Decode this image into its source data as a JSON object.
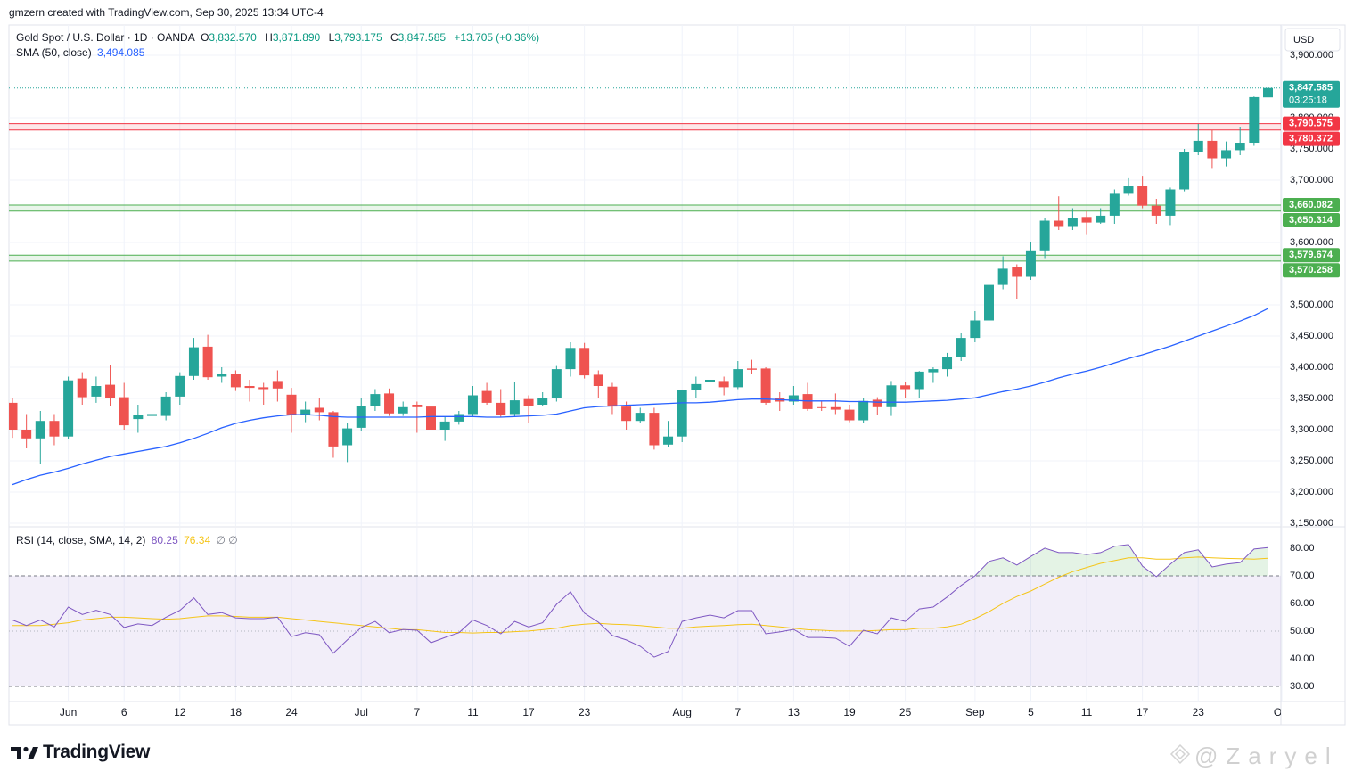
{
  "header": "gmzern created with TradingView.com, Sep 30, 2025 13:34 UTC-4",
  "logo": "TradingView",
  "watermark": "@Zaryel",
  "chart_data": {
    "type": "candlestick",
    "currency": "USD",
    "up_color": "#26a69a",
    "down_color": "#ef5350",
    "grid": true,
    "legend": {
      "symbol": "Gold Spot / U.S. Dollar · 1D · OANDA",
      "ohlc": [
        {
          "key": "O",
          "value": 3832.57,
          "label": "3,832.570"
        },
        {
          "key": "H",
          "value": 3871.89,
          "label": "3,871.890"
        },
        {
          "key": "L",
          "value": 3793.175,
          "label": "3,793.175"
        },
        {
          "key": "C",
          "value": 3847.585,
          "label": "3,847.585"
        }
      ],
      "change": {
        "value": 13.705,
        "label": "+13.705"
      },
      "change_pct": {
        "value": 0.36,
        "label": "(+0.36%)"
      }
    },
    "x": [
      "2025-05-27",
      "2025-05-28",
      "2025-05-29",
      "2025-05-30",
      "2025-06-02",
      "2025-06-03",
      "2025-06-04",
      "2025-06-05",
      "2025-06-06",
      "2025-06-09",
      "2025-06-10",
      "2025-06-11",
      "2025-06-12",
      "2025-06-13",
      "2025-06-16",
      "2025-06-17",
      "2025-06-18",
      "2025-06-19",
      "2025-06-20",
      "2025-06-23",
      "2025-06-24",
      "2025-06-25",
      "2025-06-26",
      "2025-06-27",
      "2025-06-30",
      "2025-07-01",
      "2025-07-02",
      "2025-07-03",
      "2025-07-04",
      "2025-07-07",
      "2025-07-08",
      "2025-07-09",
      "2025-07-10",
      "2025-07-11",
      "2025-07-14",
      "2025-07-15",
      "2025-07-16",
      "2025-07-17",
      "2025-07-18",
      "2025-07-21",
      "2025-07-22",
      "2025-07-23",
      "2025-07-24",
      "2025-07-25",
      "2025-07-28",
      "2025-07-29",
      "2025-07-30",
      "2025-07-31",
      "2025-08-01",
      "2025-08-04",
      "2025-08-05",
      "2025-08-06",
      "2025-08-07",
      "2025-08-08",
      "2025-08-11",
      "2025-08-12",
      "2025-08-13",
      "2025-08-14",
      "2025-08-15",
      "2025-08-18",
      "2025-08-19",
      "2025-08-20",
      "2025-08-21",
      "2025-08-22",
      "2025-08-25",
      "2025-08-26",
      "2025-08-27",
      "2025-08-28",
      "2025-08-29",
      "2025-09-01",
      "2025-09-02",
      "2025-09-03",
      "2025-09-04",
      "2025-09-05",
      "2025-09-08",
      "2025-09-09",
      "2025-09-10",
      "2025-09-11",
      "2025-09-12",
      "2025-09-15",
      "2025-09-16",
      "2025-09-17",
      "2025-09-18",
      "2025-09-19",
      "2025-09-22",
      "2025-09-23",
      "2025-09-24",
      "2025-09-25",
      "2025-09-26",
      "2025-09-29",
      "2025-09-30"
    ],
    "open": [
      3343,
      3300,
      3286,
      3314,
      3289,
      3382,
      3353,
      3372,
      3352,
      3317,
      3322,
      3322,
      3353,
      3386,
      3433,
      3385,
      3390,
      3370,
      3368,
      3378,
      3356,
      3323,
      3335,
      3328,
      3275,
      3303,
      3338,
      3358,
      3326,
      3340,
      3337,
      3300,
      3313,
      3325,
      3362,
      3343,
      3325,
      3349,
      3340,
      3350,
      3397,
      3431,
      3388,
      3369,
      3337,
      3314,
      3327,
      3276,
      3289,
      3363,
      3376,
      3378,
      3368,
      3398,
      3398,
      3350,
      3345,
      3357,
      3336,
      3336,
      3332,
      3315,
      3348,
      3336,
      3371,
      3365,
      3392,
      3397,
      3417,
      3447,
      3475,
      3532,
      3560,
      3545,
      3586,
      3635,
      3625,
      3641,
      3632,
      3643,
      3678,
      3690,
      3659,
      3643,
      3685,
      3745,
      3763,
      3735,
      3748,
      3760,
      3832.57
    ],
    "high": [
      3350,
      3325,
      3330,
      3325,
      3385,
      3392,
      3385,
      3403,
      3375,
      3340,
      3340,
      3360,
      3392,
      3447,
      3452,
      3400,
      3395,
      3380,
      3375,
      3395,
      3367,
      3345,
      3350,
      3330,
      3310,
      3350,
      3365,
      3366,
      3345,
      3345,
      3345,
      3320,
      3330,
      3370,
      3375,
      3365,
      3377,
      3355,
      3360,
      3402,
      3440,
      3439,
      3395,
      3375,
      3345,
      3335,
      3335,
      3314,
      3363,
      3385,
      3392,
      3385,
      3410,
      3412,
      3400,
      3360,
      3370,
      3375,
      3345,
      3358,
      3340,
      3350,
      3352,
      3378,
      3376,
      3394,
      3400,
      3423,
      3455,
      3490,
      3540,
      3578,
      3565,
      3600,
      3640,
      3674,
      3655,
      3650,
      3655,
      3685,
      3703,
      3707,
      3670,
      3688,
      3750,
      3790,
      3780,
      3762,
      3785,
      3834,
      3871.89
    ],
    "low": [
      3287,
      3270,
      3245,
      3275,
      3285,
      3340,
      3343,
      3338,
      3300,
      3295,
      3310,
      3315,
      3340,
      3380,
      3380,
      3375,
      3362,
      3345,
      3340,
      3345,
      3295,
      3312,
      3315,
      3255,
      3248,
      3298,
      3330,
      3322,
      3322,
      3295,
      3283,
      3282,
      3308,
      3320,
      3340,
      3320,
      3320,
      3310,
      3338,
      3345,
      3385,
      3382,
      3350,
      3325,
      3300,
      3310,
      3268,
      3272,
      3280,
      3350,
      3364,
      3355,
      3365,
      3390,
      3340,
      3330,
      3340,
      3330,
      3330,
      3325,
      3312,
      3311,
      3323,
      3322,
      3350,
      3350,
      3375,
      3385,
      3410,
      3440,
      3470,
      3525,
      3510,
      3540,
      3575,
      3620,
      3620,
      3612,
      3630,
      3630,
      3675,
      3655,
      3630,
      3628,
      3682,
      3740,
      3718,
      3722,
      3740,
      3755,
      3793.175
    ],
    "close": [
      3300,
      3286,
      3314,
      3289,
      3379,
      3352,
      3370,
      3351,
      3307,
      3324,
      3325,
      3353,
      3386,
      3432,
      3384,
      3389,
      3368,
      3367,
      3365,
      3366,
      3323,
      3332,
      3328,
      3273,
      3302,
      3338,
      3357,
      3326,
      3336,
      3336,
      3300,
      3313,
      3325,
      3355,
      3343,
      3323,
      3347,
      3338,
      3350,
      3397,
      3431,
      3387,
      3370,
      3337,
      3314,
      3327,
      3275,
      3289,
      3363,
      3373,
      3380,
      3368,
      3397,
      3396,
      3343,
      3345,
      3355,
      3333,
      3335,
      3332,
      3315,
      3346,
      3336,
      3371,
      3365,
      3393,
      3397,
      3417,
      3447,
      3475,
      3532,
      3558,
      3545,
      3586,
      3635,
      3625,
      3640,
      3632,
      3643,
      3678,
      3690,
      3659,
      3643,
      3685,
      3745,
      3763,
      3735,
      3748,
      3760,
      3833,
      3847.585
    ],
    "sma": {
      "name": "SMA (50, close)",
      "color": "#2962ff",
      "value_label": "3,494.085",
      "values": [
        3212,
        3220,
        3227,
        3232,
        3238,
        3245,
        3251,
        3257,
        3261,
        3265,
        3269,
        3273,
        3279,
        3286,
        3294,
        3303,
        3310,
        3315,
        3319,
        3322,
        3324,
        3324,
        3323,
        3321,
        3320,
        3320,
        3320,
        3320,
        3320,
        3320,
        3321,
        3321,
        3321,
        3321,
        3320,
        3320,
        3321,
        3322,
        3323,
        3325,
        3330,
        3335,
        3337,
        3338,
        3339,
        3340,
        3341,
        3342,
        3343,
        3343,
        3344,
        3346,
        3348,
        3349,
        3349,
        3348,
        3347,
        3346,
        3346,
        3346,
        3345,
        3345,
        3344,
        3344,
        3344,
        3345,
        3346,
        3347,
        3349,
        3351,
        3356,
        3361,
        3365,
        3370,
        3376,
        3383,
        3389,
        3394,
        3400,
        3407,
        3414,
        3420,
        3427,
        3434,
        3442,
        3450,
        3458,
        3466,
        3474,
        3483,
        3494.085
      ]
    },
    "ylim": [
      3145.7,
      3948.6
    ],
    "yticks": [
      {
        "value": 3900,
        "label": "3,900.000"
      },
      {
        "value": 3800,
        "label": "3,800.000"
      },
      {
        "value": 3750,
        "label": "3,750.000"
      },
      {
        "value": 3700,
        "label": "3,700.000"
      },
      {
        "value": 3600,
        "label": "3,600.000"
      },
      {
        "value": 3500,
        "label": "3,500.000"
      },
      {
        "value": 3450,
        "label": "3,450.000"
      },
      {
        "value": 3400,
        "label": "3,400.000"
      },
      {
        "value": 3350,
        "label": "3,350.000"
      },
      {
        "value": 3300,
        "label": "3,300.000"
      },
      {
        "value": 3250,
        "label": "3,250.000"
      },
      {
        "value": 3200,
        "label": "3,200.000"
      },
      {
        "value": 3150,
        "label": "3,150.000"
      }
    ],
    "xticks": [
      {
        "value": "2025-06-02",
        "label": "Jun"
      },
      {
        "value": "2025-06-06",
        "label": "6"
      },
      {
        "value": "2025-06-12",
        "label": "12"
      },
      {
        "value": "2025-06-18",
        "label": "18"
      },
      {
        "value": "2025-06-24",
        "label": "24"
      },
      {
        "value": "2025-07-01",
        "label": "Jul"
      },
      {
        "value": "2025-07-07",
        "label": "7"
      },
      {
        "value": "2025-07-11",
        "label": "11"
      },
      {
        "value": "2025-07-17",
        "label": "17"
      },
      {
        "value": "2025-07-23",
        "label": "23"
      },
      {
        "value": "2025-08-01",
        "label": "Aug"
      },
      {
        "value": "2025-08-07",
        "label": "7"
      },
      {
        "value": "2025-08-13",
        "label": "13"
      },
      {
        "value": "2025-08-19",
        "label": "19"
      },
      {
        "value": "2025-08-25",
        "label": "25"
      },
      {
        "value": "2025-09-01",
        "label": "Sep"
      },
      {
        "value": "2025-09-05",
        "label": "5"
      },
      {
        "value": "2025-09-11",
        "label": "11"
      },
      {
        "value": "2025-09-17",
        "label": "17"
      },
      {
        "value": "2025-09-23",
        "label": "23"
      },
      {
        "value": "2025-10-01",
        "label": "Oct"
      }
    ],
    "last_price": {
      "value": 3847.585,
      "label": "3,847.585",
      "countdown": "03:25:18"
    },
    "zones": [
      {
        "color": "#f23645",
        "levels": [
          {
            "value": 3790.575,
            "label": "3,790.575"
          },
          {
            "value": 3780.372,
            "label": "3,780.372"
          }
        ]
      },
      {
        "color": "#4caf50",
        "levels": [
          {
            "value": 3660.082,
            "label": "3,660.082"
          },
          {
            "value": 3650.314,
            "label": "3,650.314"
          }
        ]
      },
      {
        "color": "#4caf50",
        "levels": [
          {
            "value": 3579.674,
            "label": "3,579.674"
          },
          {
            "value": 3570.258,
            "label": "3,570.258"
          }
        ]
      }
    ],
    "rsi": {
      "name": "RSI (14, close, SMA, 14, 2)",
      "color": "#7e57c2",
      "value_label": "80.25",
      "na_labels": "∅ ∅",
      "values": [
        54,
        52,
        54,
        51.5,
        58.7,
        56,
        57.5,
        56,
        51.3,
        52.6,
        52,
        55,
        57.5,
        62,
        56,
        56.7,
        54.8,
        54.5,
        54.5,
        55,
        48,
        49.4,
        48.7,
        42,
        46.8,
        51.3,
        53.5,
        49.4,
        50.6,
        50.3,
        45.8,
        47.7,
        49.4,
        54,
        52,
        49,
        53.5,
        51.5,
        53,
        59.7,
        64.2,
        56.5,
        53.2,
        48.4,
        46.8,
        44.5,
        40.6,
        42.6,
        53.5,
        54.8,
        55.8,
        54.8,
        57.4,
        57.4,
        49,
        49.7,
        50.6,
        47.7,
        47.7,
        47.4,
        44.5,
        50.3,
        49,
        54.8,
        53.5,
        58,
        58.7,
        62.3,
        66.5,
        70,
        75.2,
        76.5,
        73.9,
        77,
        80,
        78.4,
        78.4,
        77.7,
        78.4,
        80.7,
        81.3,
        73.5,
        69.7,
        74.2,
        78.4,
        79.4,
        73.2,
        74.2,
        74.8,
        79.7,
        80.25
      ],
      "ma": {
        "color": "#f5c518",
        "value_label": "76.34",
        "values": [
          52,
          52,
          52,
          52.5,
          53,
          54,
          54.5,
          55,
          55,
          54.8,
          54.5,
          54.3,
          54.5,
          55,
          55.5,
          55.5,
          55.3,
          55,
          55,
          55,
          54.5,
          54,
          53.5,
          53,
          52.5,
          52,
          51.5,
          51,
          50.5,
          50.5,
          50,
          49.5,
          49.5,
          49.3,
          49.5,
          49.5,
          49.8,
          50,
          50.5,
          51,
          52,
          52.5,
          52.8,
          52.5,
          52.3,
          52,
          51.5,
          51,
          51,
          51.5,
          51.8,
          52,
          52.3,
          52.5,
          52,
          51.5,
          51,
          50.5,
          50.3,
          50,
          50,
          50,
          50.2,
          50.5,
          50.5,
          51,
          51,
          51.5,
          52.5,
          54.5,
          57,
          60,
          62.5,
          64.5,
          67,
          69.5,
          71.5,
          73,
          74.5,
          75.5,
          76.5,
          76.5,
          76,
          76,
          76.5,
          76.8,
          76.5,
          76.3,
          76.2,
          76,
          76.34
        ]
      },
      "bands": {
        "upper": 70,
        "middle": 50,
        "lower": 30
      },
      "ylim": [
        24.5,
        87.4
      ],
      "yticks": [
        {
          "value": 80,
          "label": "80.00"
        },
        {
          "value": 70,
          "label": "70.00"
        },
        {
          "value": 60,
          "label": "60.00"
        },
        {
          "value": 50,
          "label": "50.00"
        },
        {
          "value": 40,
          "label": "40.00"
        },
        {
          "value": 30,
          "label": "30.00"
        }
      ]
    }
  }
}
